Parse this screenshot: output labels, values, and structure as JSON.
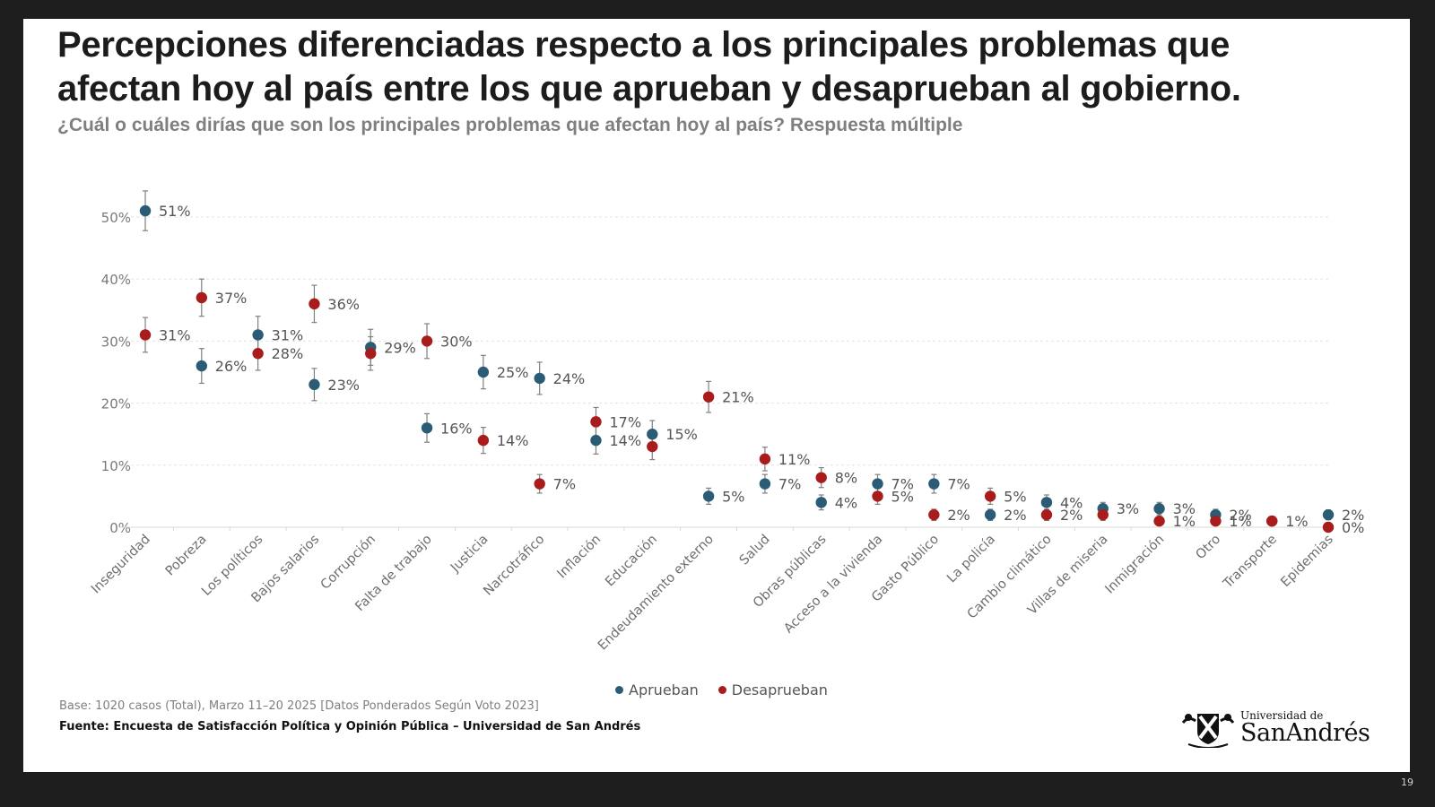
{
  "slide": {
    "title": "Percepciones diferenciadas respecto a los principales problemas que afectan hoy al país entre los que aprueban y desaprueban al gobierno.",
    "subtitle": "¿Cuál o cuáles dirías que son los principales problemas que afectan hoy al país? Respuesta múltiple",
    "base_note": "Base: 1020 casos (Total), Marzo 11–20 2025 [Datos Ponderados Según Voto 2023]",
    "source_note": "Fuente: Encuesta de Satisfacción Política y Opinión Pública – Universidad de San Andrés",
    "logo": {
      "small": "Universidad de",
      "big": "SanAndrés",
      "icon": "university-crest-icon"
    },
    "page_number": "19"
  },
  "colors": {
    "aprueban": "#2b5c75",
    "desaprueban": "#a81c1c",
    "error_bar": "#808080",
    "grid": "#e3e3e3"
  },
  "chart_data": {
    "type": "scatter",
    "title": "Percepciones diferenciadas respecto a los principales problemas que afectan hoy al país entre los que aprueban y desaprueban al gobierno.",
    "subtitle": "¿Cuál o cuáles dirías que son los principales problemas que afectan hoy al país? Respuesta múltiple",
    "xlabel": "",
    "ylabel": "",
    "ylim": [
      0,
      50
    ],
    "yticks": [
      0,
      10,
      20,
      30,
      40,
      50
    ],
    "ytick_labels": [
      "0%",
      "10%",
      "20%",
      "30%",
      "40%",
      "50%"
    ],
    "grid": true,
    "legend_position": "bottom",
    "error_bars": true,
    "categories": [
      "Inseguridad",
      "Pobreza",
      "Los políticos",
      "Bajos salarios",
      "Corrupción",
      "Falta de trabajo",
      "Justicia",
      "Narcotráfico",
      "Inflación",
      "Educación",
      "Endeudamiento externo",
      "Salud",
      "Obras públicas",
      "Acceso a la vivienda",
      "Gasto Público",
      "La policía",
      "Cambio climático",
      "Villas de miseria",
      "Inmigración",
      "Otro",
      "Transporte",
      "Epidemias"
    ],
    "series": [
      {
        "name": "Aprueban",
        "values": [
          51,
          26,
          31,
          23,
          29,
          16,
          25,
          24,
          14,
          15,
          5,
          7,
          4,
          7,
          7,
          2,
          4,
          3,
          3,
          2,
          1,
          2
        ],
        "labels": [
          "51%",
          "26%",
          "31%",
          "23%",
          "29%",
          "16%",
          "25%",
          "24%",
          "14%",
          "15%",
          "5%",
          "7%",
          "4%",
          "7%",
          "7%",
          "2%",
          "4%",
          "3%",
          "3%",
          "2%",
          "",
          "2%"
        ],
        "error": [
          3.2,
          2.8,
          3.0,
          2.6,
          2.9,
          2.3,
          2.7,
          2.6,
          2.2,
          2.2,
          1.3,
          1.5,
          1.2,
          1.5,
          1.5,
          0.9,
          1.2,
          1.0,
          1.0,
          0.9,
          0.6,
          0.8
        ]
      },
      {
        "name": "Desaprueban",
        "values": [
          31,
          37,
          28,
          36,
          28,
          30,
          14,
          7,
          17,
          13,
          21,
          11,
          8,
          5,
          2,
          5,
          2,
          2,
          1,
          1,
          1,
          0
        ],
        "labels": [
          "31%",
          "37%",
          "28%",
          "36%",
          "",
          "30%",
          "14%",
          "7%",
          "17%",
          "",
          "21%",
          "11%",
          "8%",
          "5%",
          "2%",
          "5%",
          "2%",
          "",
          "1%",
          "1%",
          "1%",
          "0%"
        ],
        "error": [
          2.8,
          3.0,
          2.7,
          3.0,
          2.7,
          2.8,
          2.1,
          1.5,
          2.3,
          2.1,
          2.5,
          1.9,
          1.6,
          1.3,
          0.9,
          1.3,
          0.9,
          0.9,
          0.6,
          0.6,
          0.6,
          0.3
        ]
      }
    ]
  }
}
